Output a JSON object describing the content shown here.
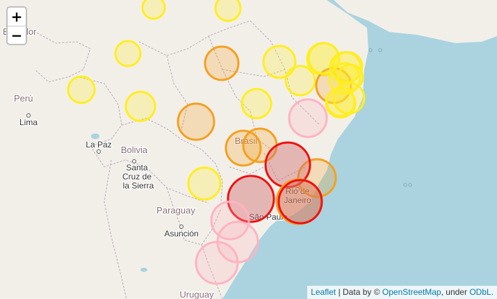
{
  "controls": {
    "zoom_in_label": "+",
    "zoom_out_label": "−"
  },
  "attribution": {
    "leaflet_link": "Leaflet",
    "separator": " | Data by © ",
    "osm_link": "OpenStreetMap",
    "under_text": ", under ",
    "license_link": "ODbL."
  },
  "place_labels": [
    {
      "text": "Ecuador",
      "kind": "country"
    },
    {
      "text": "Perú",
      "kind": "country"
    },
    {
      "text": "Lima",
      "kind": "city"
    },
    {
      "text": "La Paz",
      "kind": "city"
    },
    {
      "text": "Bolivia",
      "kind": "country"
    },
    {
      "text": "Santa",
      "kind": "city"
    },
    {
      "text": "Cruz de",
      "kind": "city"
    },
    {
      "text": "la Sierra",
      "kind": "city"
    },
    {
      "text": "Brasil",
      "kind": "country"
    },
    {
      "text": "Rio de",
      "kind": "city"
    },
    {
      "text": "Janeiro",
      "kind": "city"
    },
    {
      "text": "São Paulo",
      "kind": "city"
    },
    {
      "text": "Paraguay",
      "kind": "country"
    },
    {
      "text": "Asunción",
      "kind": "city"
    },
    {
      "text": "Uruguay",
      "kind": "country"
    }
  ],
  "colors": {
    "ocean": "#aad3df",
    "land": "#f2efe9",
    "border": "#b9a8b9",
    "marker_fill": "#f0c0c0",
    "yellow": "#ffee22",
    "orange": "#f5a020",
    "red": "#ee1111",
    "pink": "#ffb3c1"
  },
  "markers": {
    "count": 32,
    "levels": [
      "yellow",
      "yellow",
      "yellow",
      "yellow",
      "yellow",
      "orange",
      "yellow",
      "yellow",
      "yellow",
      "yellow",
      "orange",
      "yellow",
      "yellow",
      "yellow",
      "orange",
      "yellow",
      "yellow",
      "pink",
      "orange",
      "orange",
      "orange",
      "red",
      "orange",
      "yellow",
      "red",
      "red",
      "pink",
      "pink",
      "pink",
      "yellow",
      "yellow",
      "yellow"
    ]
  }
}
